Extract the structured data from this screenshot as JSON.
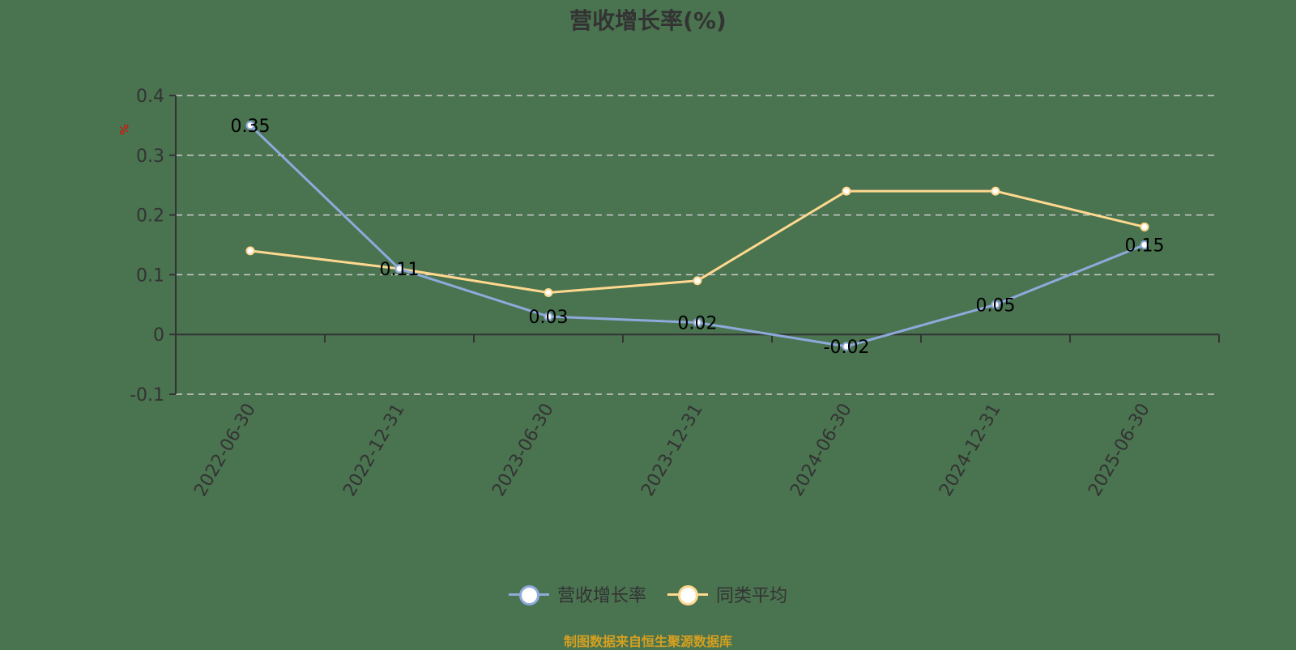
{
  "title": "营收增长率(%)",
  "ylabel": "%",
  "source": "制图数据来自恒生聚源数据库",
  "colors": {
    "background": "#4a7350",
    "series1": "#8eaadb",
    "series2": "#ffd88f",
    "grid": "#cccccc",
    "axis": "#333333",
    "source": "#d4a020",
    "ylabel": "#ff0000"
  },
  "legend": [
    {
      "label": "营收增长率",
      "color": "#8eaadb"
    },
    {
      "label": "同类平均",
      "color": "#ffd88f"
    }
  ],
  "chart_data": {
    "type": "line",
    "title": "营收增长率(%)",
    "xlabel": "",
    "ylabel": "%",
    "ylim": [
      -0.1,
      0.4
    ],
    "yticks": [
      0.4,
      0.3,
      0.2,
      0.1,
      0,
      -0.1
    ],
    "grid": true,
    "legend_position": "bottom",
    "categories": [
      "2022-06-30",
      "2022-12-31",
      "2023-06-30",
      "2023-12-31",
      "2024-06-30",
      "2024-12-31",
      "2025-06-30"
    ],
    "series": [
      {
        "name": "营收增长率",
        "values": [
          0.35,
          0.11,
          0.03,
          0.02,
          -0.02,
          0.05,
          0.15
        ],
        "labels_shown": true
      },
      {
        "name": "同类平均",
        "values": [
          0.14,
          0.11,
          0.07,
          0.09,
          0.24,
          0.24,
          0.18
        ],
        "labels_shown": false
      }
    ]
  }
}
